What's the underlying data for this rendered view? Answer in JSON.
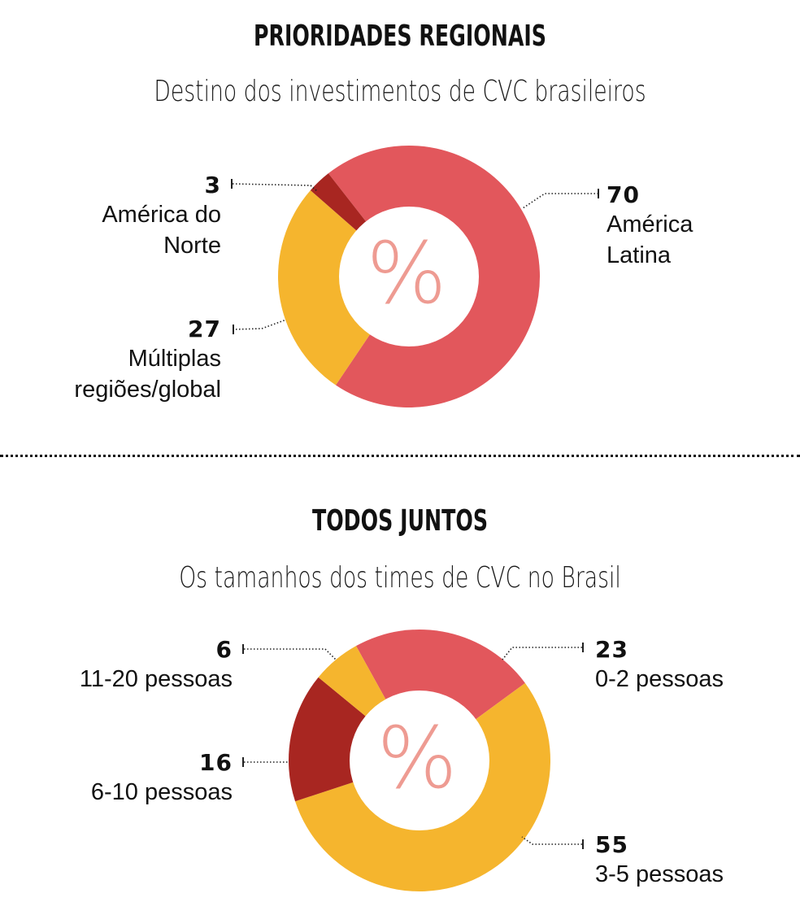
{
  "chart1": {
    "title": "PRIORIDADES REGIONAIS",
    "subtitle": "Destino dos investimentos de CVC brasileiros",
    "center_symbol": "%",
    "labels": [
      {
        "value": "3",
        "text1": "América do",
        "text2": "Norte"
      },
      {
        "value": "27",
        "text1": "Múltiplas",
        "text2": "regiões/global"
      },
      {
        "value": "70",
        "text1": "América",
        "text2": "Latina"
      }
    ]
  },
  "chart2": {
    "title": "TODOS JUNTOS",
    "subtitle": "Os tamanhos dos times de CVC no Brasil",
    "center_symbol": "%",
    "labels": [
      {
        "value": "6",
        "text1": "11-20 pessoas"
      },
      {
        "value": "16",
        "text1": "6-10 pessoas"
      },
      {
        "value": "23",
        "text1": "0-2 pessoas"
      },
      {
        "value": "55",
        "text1": "3-5 pessoas"
      }
    ]
  },
  "colors": {
    "red": "#E2575C",
    "yellow": "#F5B52E",
    "dark_red": "#A82621",
    "percent_symbol": "#EE9B92"
  },
  "chart_data": [
    {
      "type": "pie",
      "title": "PRIORIDADES REGIONAIS",
      "subtitle": "Destino dos investimentos de CVC brasileiros",
      "unit": "%",
      "donut": true,
      "categories": [
        "América Latina",
        "Múltiplas regiões/global",
        "América do Norte"
      ],
      "values": [
        70,
        27,
        3
      ],
      "colors": [
        "#E2575C",
        "#F5B52E",
        "#A82621"
      ]
    },
    {
      "type": "pie",
      "title": "TODOS JUNTOS",
      "subtitle": "Os tamanhos dos times de CVC no Brasil",
      "unit": "%",
      "donut": true,
      "categories": [
        "0-2 pessoas",
        "3-5 pessoas",
        "6-10 pessoas",
        "11-20 pessoas"
      ],
      "values": [
        23,
        55,
        16,
        6
      ],
      "colors": [
        "#E2575C",
        "#F5B52E",
        "#A82621",
        "#F5B52E"
      ]
    }
  ]
}
